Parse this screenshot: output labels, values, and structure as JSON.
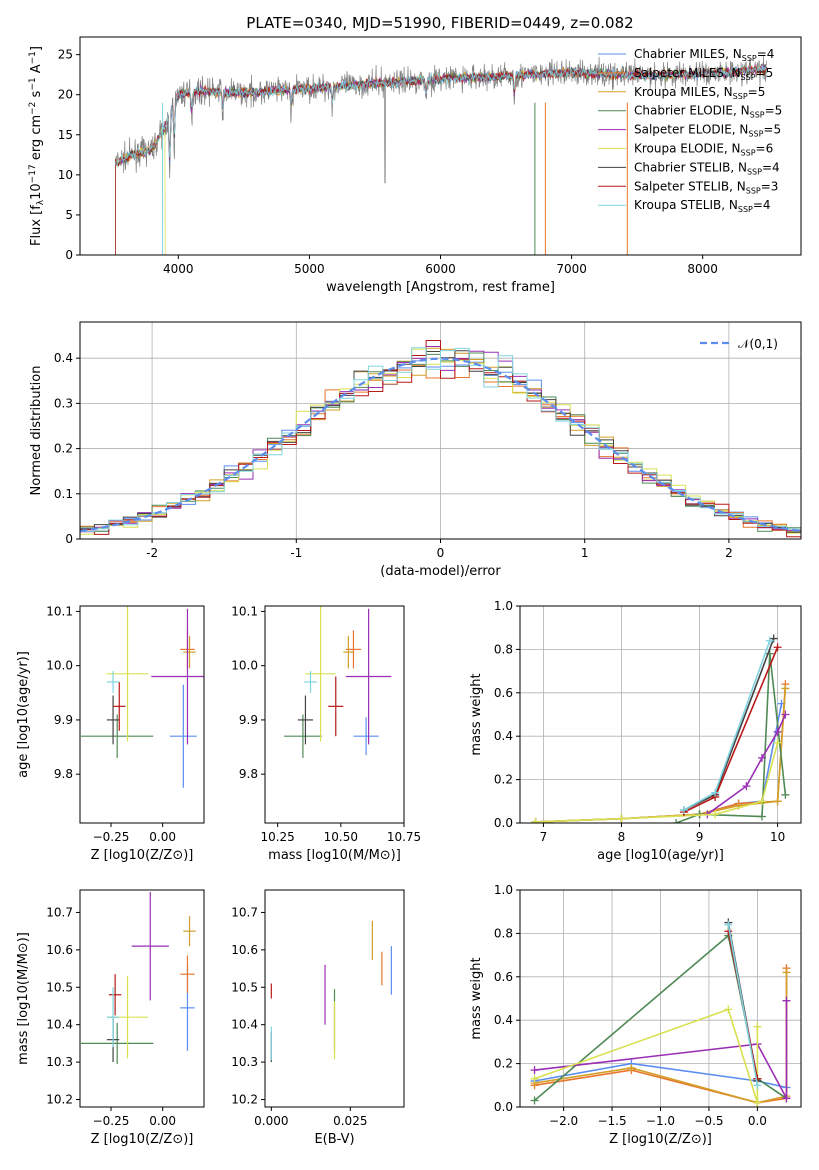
{
  "title": "PLATE=0340, MJD=51990, FIBERID=0449, z=0.082",
  "colors": {
    "Chabrier MILES": "#5b8def",
    "Salpeter MILES": "#e8762d",
    "Kroupa MILES": "#d2a028",
    "Chabrier ELODIE": "#4f8a55",
    "Salpeter ELODIE": "#9a2fb5",
    "Kroupa ELODIE": "#d9e050",
    "Chabrier STELIB": "#444444",
    "Salpeter STELIB": "#b81818",
    "Kroupa STELIB": "#7fd3df"
  },
  "chart_data": [
    {
      "id": "spectrum",
      "type": "line",
      "title": "PLATE=0340, MJD=51990, FIBERID=0449, z=0.082",
      "xlabel": "wavelength [Angstrom, rest frame]",
      "ylabel": "Flux [f_λ 10^-17 erg cm^-2 s^-1 A^-1]",
      "xlim": [
        3250,
        8750
      ],
      "ylim": [
        0,
        27.2
      ],
      "xticks": [
        4000,
        5000,
        6000,
        7000,
        8000
      ],
      "yticks": [
        0,
        5,
        10,
        15,
        20,
        25
      ],
      "legend_position": "right",
      "legend": [
        {
          "model": "Chabrier MILES",
          "nssp": "4"
        },
        {
          "model": "Salpeter MILES",
          "nssp": "5"
        },
        {
          "model": "Kroupa MILES",
          "nssp": "5"
        },
        {
          "model": "Chabrier ELODIE",
          "nssp": "5"
        },
        {
          "model": "Salpeter ELODIE",
          "nssp": "5"
        },
        {
          "model": "Kroupa ELODIE",
          "nssp": "6"
        },
        {
          "model": "Chabrier STELIB",
          "nssp": "4"
        },
        {
          "model": "Salpeter STELIB",
          "nssp": "3"
        },
        {
          "model": "Kroupa STELIB",
          "nssp": "4"
        }
      ],
      "continuum": [
        [
          3520,
          11.5
        ],
        [
          3650,
          12.5
        ],
        [
          3800,
          13.2
        ],
        [
          3900,
          16
        ],
        [
          3990,
          20
        ],
        [
          4200,
          20.5
        ],
        [
          4500,
          20.2
        ],
        [
          5000,
          20.8
        ],
        [
          5500,
          21.4
        ],
        [
          6000,
          22
        ],
        [
          6500,
          22.3
        ],
        [
          7000,
          22.8
        ],
        [
          7500,
          22.4
        ],
        [
          8000,
          22.6
        ],
        [
          8500,
          23.2
        ]
      ]
    },
    {
      "id": "residuals",
      "type": "area",
      "xlabel": "(data-model)/error",
      "ylabel": "Normed distribution",
      "xlim": [
        -2.5,
        2.5
      ],
      "ylim": [
        0,
        0.48
      ],
      "xticks": [
        -2,
        -1,
        0,
        1,
        2
      ],
      "yticks": [
        0.0,
        0.1,
        0.2,
        0.3,
        0.4
      ],
      "grid": true,
      "legend_position": "top-right",
      "legend_label": "𝒩(0,1)",
      "bin_width": 0.1
    },
    {
      "id": "age-vs-Z",
      "type": "scatter",
      "xlabel": "Z [log10(Z/Z⊙)]",
      "ylabel": "age [log10(age/yr)]",
      "xlim": [
        -0.4,
        0.2
      ],
      "ylim": [
        9.71,
        10.11
      ],
      "xticks": [
        -0.25,
        0.0
      ],
      "yticks": [
        9.8,
        9.9,
        10.0,
        10.1
      ],
      "points": [
        {
          "model": "Chabrier MILES",
          "x": 0.1,
          "y": 9.87,
          "xerr": 0.13,
          "yerr": 0.19
        },
        {
          "model": "Salpeter MILES",
          "x": 0.12,
          "y": 10.03,
          "xerr": 0.07,
          "yerr": 0.07
        },
        {
          "model": "Kroupa MILES",
          "x": 0.13,
          "y": 10.025,
          "xerr": 0.06,
          "yerr": 0.06
        },
        {
          "model": "Chabrier ELODIE",
          "x": -0.22,
          "y": 9.87,
          "xerr": 0.35,
          "yerr": 0.08
        },
        {
          "model": "Salpeter ELODIE",
          "x": 0.12,
          "y": 9.98,
          "xerr": 0.35,
          "yerr": 0.25
        },
        {
          "model": "Kroupa ELODIE",
          "x": -0.17,
          "y": 9.985,
          "xerr": 0.2,
          "yerr": 0.25
        },
        {
          "model": "Chabrier STELIB",
          "x": -0.24,
          "y": 9.9,
          "xerr": 0.06,
          "yerr": 0.09
        },
        {
          "model": "Salpeter STELIB",
          "x": -0.21,
          "y": 9.925,
          "xerr": 0.06,
          "yerr": 0.09
        },
        {
          "model": "Kroupa STELIB",
          "x": -0.24,
          "y": 9.97,
          "xerr": 0.06,
          "yerr": 0.04
        }
      ]
    },
    {
      "id": "age-vs-mass",
      "type": "scatter",
      "xlabel": "mass [log10(M/M⊙)]",
      "xlim": [
        10.2,
        10.75
      ],
      "ylim": [
        9.71,
        10.11
      ],
      "xticks": [
        10.25,
        10.5,
        10.75
      ],
      "yticks": [
        9.8,
        9.9,
        10.0,
        10.1
      ],
      "points": [
        {
          "model": "Chabrier MILES",
          "x": 10.6,
          "y": 9.87,
          "xerr": 0.1,
          "yerr": 0.07
        },
        {
          "model": "Salpeter MILES",
          "x": 10.55,
          "y": 10.03,
          "xerr": 0.06,
          "yerr": 0.07
        },
        {
          "model": "Kroupa MILES",
          "x": 10.53,
          "y": 10.025,
          "xerr": 0.04,
          "yerr": 0.06
        },
        {
          "model": "Chabrier ELODIE",
          "x": 10.35,
          "y": 9.87,
          "xerr": 0.15,
          "yerr": 0.08
        },
        {
          "model": "Salpeter ELODIE",
          "x": 10.61,
          "y": 9.98,
          "xerr": 0.18,
          "yerr": 0.25
        },
        {
          "model": "Kroupa ELODIE",
          "x": 10.42,
          "y": 9.985,
          "xerr": 0.12,
          "yerr": 0.25
        },
        {
          "model": "Chabrier STELIB",
          "x": 10.36,
          "y": 9.9,
          "xerr": 0.06,
          "yerr": 0.09
        },
        {
          "model": "Salpeter STELIB",
          "x": 10.48,
          "y": 9.925,
          "xerr": 0.06,
          "yerr": 0.11
        },
        {
          "model": "Kroupa STELIB",
          "x": 10.38,
          "y": 9.97,
          "xerr": 0.05,
          "yerr": 0.04
        }
      ]
    },
    {
      "id": "weight-vs-age",
      "type": "line",
      "xlabel": "age [log10(age/yr)]",
      "ylabel": "mass weight",
      "xlim": [
        6.7,
        10.3
      ],
      "ylim": [
        0,
        1
      ],
      "xticks": [
        7,
        8,
        9,
        10
      ],
      "yticks": [
        0.0,
        0.2,
        0.4,
        0.6,
        0.8,
        1.0
      ],
      "grid": true,
      "series": [
        {
          "model": "Chabrier MILES",
          "x": [
            6.9,
            8.0,
            9.0,
            9.5,
            9.8,
            10.05
          ],
          "y": [
            0.005,
            0.02,
            0.04,
            0.09,
            0.1,
            0.55
          ]
        },
        {
          "model": "Salpeter MILES",
          "x": [
            6.9,
            8.0,
            9.0,
            9.5,
            10.0,
            10.1
          ],
          "y": [
            0.005,
            0.02,
            0.04,
            0.09,
            0.1,
            0.64
          ]
        },
        {
          "model": "Kroupa MILES",
          "x": [
            6.9,
            8.0,
            9.0,
            9.5,
            10.0,
            10.1
          ],
          "y": [
            0.005,
            0.02,
            0.04,
            0.08,
            0.1,
            0.62
          ]
        },
        {
          "model": "Chabrier ELODIE",
          "x": [
            8.7,
            9.0,
            9.8,
            9.9,
            10.1
          ],
          "y": [
            0.0,
            0.04,
            0.03,
            0.78,
            0.13
          ]
        },
        {
          "model": "Salpeter ELODIE",
          "x": [
            9.1,
            9.6,
            9.8,
            10.0,
            10.1
          ],
          "y": [
            0.04,
            0.17,
            0.3,
            0.42,
            0.5
          ]
        },
        {
          "model": "Kroupa ELODIE",
          "x": [
            6.9,
            8.0,
            9.2,
            9.8,
            10.0
          ],
          "y": [
            0.005,
            0.02,
            0.04,
            0.1,
            0.37
          ]
        },
        {
          "model": "Chabrier STELIB",
          "x": [
            8.8,
            9.2,
            9.95
          ],
          "y": [
            0.06,
            0.13,
            0.85
          ]
        },
        {
          "model": "Salpeter STELIB",
          "x": [
            8.8,
            9.2,
            10.0
          ],
          "y": [
            0.05,
            0.12,
            0.81
          ]
        },
        {
          "model": "Kroupa STELIB",
          "x": [
            8.8,
            9.2,
            9.9
          ],
          "y": [
            0.06,
            0.14,
            0.84
          ]
        }
      ]
    },
    {
      "id": "mass-vs-Z",
      "type": "scatter",
      "xlabel": "Z [log10(Z/Z⊙)]",
      "ylabel": "mass [log10(M/M⊙)]",
      "xlim": [
        -0.4,
        0.2
      ],
      "ylim": [
        10.18,
        10.76
      ],
      "xticks": [
        -0.25,
        0.0
      ],
      "yticks": [
        10.2,
        10.3,
        10.4,
        10.5,
        10.6,
        10.7
      ],
      "points": [
        {
          "model": "Chabrier MILES",
          "x": 0.12,
          "y": 10.445,
          "xerr": 0.07,
          "yerr": 0.23
        },
        {
          "model": "Salpeter MILES",
          "x": 0.12,
          "y": 10.535,
          "xerr": 0.07,
          "yerr": 0.1
        },
        {
          "model": "Kroupa MILES",
          "x": 0.13,
          "y": 10.65,
          "xerr": 0.06,
          "yerr": 0.08
        },
        {
          "model": "Chabrier ELODIE",
          "x": -0.22,
          "y": 10.35,
          "xerr": 0.35,
          "yerr": 0.11
        },
        {
          "model": "Salpeter ELODIE",
          "x": -0.06,
          "y": 10.61,
          "xerr": 0.18,
          "yerr": 0.29
        },
        {
          "model": "Kroupa ELODIE",
          "x": -0.17,
          "y": 10.42,
          "xerr": 0.2,
          "yerr": 0.22
        },
        {
          "model": "Chabrier STELIB",
          "x": -0.24,
          "y": 10.36,
          "xerr": 0.06,
          "yerr": 0.12
        },
        {
          "model": "Salpeter STELIB",
          "x": -0.23,
          "y": 10.48,
          "xerr": 0.06,
          "yerr": 0.11
        },
        {
          "model": "Kroupa STELIB",
          "x": -0.24,
          "y": 10.42,
          "xerr": 0.06,
          "yerr": 0.16
        }
      ]
    },
    {
      "id": "mass-vs-ebv",
      "type": "scatter",
      "xlabel": "E(B-V)",
      "xlim": [
        -0.002,
        0.042
      ],
      "ylim": [
        10.18,
        10.76
      ],
      "xticks": [
        0.0,
        0.025
      ],
      "yticks": [
        10.2,
        10.3,
        10.4,
        10.5,
        10.6,
        10.7
      ],
      "points": [
        {
          "model": "Chabrier MILES",
          "x": 0.038,
          "y": 10.545,
          "yerr": 0.13
        },
        {
          "model": "Salpeter MILES",
          "x": 0.035,
          "y": 10.55,
          "yerr": 0.09
        },
        {
          "model": "Kroupa MILES",
          "x": 0.032,
          "y": 10.625,
          "yerr": 0.105
        },
        {
          "model": "Chabrier ELODIE",
          "x": 0.02,
          "y": 10.41,
          "yerr": 0.17
        },
        {
          "model": "Salpeter ELODIE",
          "x": 0.017,
          "y": 10.48,
          "yerr": 0.16
        },
        {
          "model": "Kroupa ELODIE",
          "x": 0.02,
          "y": 10.385,
          "yerr": 0.155
        },
        {
          "model": "Chabrier STELIB",
          "x": 0.0,
          "y": 10.34,
          "yerr": 0.08
        },
        {
          "model": "Salpeter STELIB",
          "x": 0.0,
          "y": 10.49,
          "yerr": 0.04
        },
        {
          "model": "Kroupa STELIB",
          "x": 0.0,
          "y": 10.35,
          "yerr": 0.09
        }
      ]
    },
    {
      "id": "weight-vs-Z",
      "type": "line",
      "xlabel": "Z [log10(Z/Z⊙)]",
      "ylabel": "mass weight",
      "xlim": [
        -2.45,
        0.45
      ],
      "ylim": [
        0,
        1
      ],
      "xticks": [
        -2.0,
        -1.5,
        -1.0,
        -0.5,
        0.0
      ],
      "yticks": [
        0.0,
        0.2,
        0.4,
        0.6,
        0.8,
        1.0
      ],
      "grid": true,
      "series": [
        {
          "model": "Chabrier MILES",
          "x": [
            -2.3,
            -1.3,
            0.0,
            0.3
          ],
          "y": [
            0.12,
            0.2,
            0.12,
            0.09
          ]
        },
        {
          "model": "Salpeter MILES",
          "x": [
            -2.3,
            -1.3,
            0.0,
            0.3,
            0.3
          ],
          "y": [
            0.1,
            0.17,
            0.02,
            0.04,
            0.64
          ]
        },
        {
          "model": "Kroupa MILES",
          "x": [
            -2.3,
            -1.3,
            0.0,
            0.3,
            0.3
          ],
          "y": [
            0.11,
            0.18,
            0.02,
            0.05,
            0.62
          ]
        },
        {
          "model": "Chabrier ELODIE",
          "x": [
            -2.3,
            -0.3,
            0.0,
            0.3
          ],
          "y": [
            0.03,
            0.79,
            0.13,
            0.04
          ]
        },
        {
          "model": "Salpeter ELODIE",
          "x": [
            -2.3,
            0.0,
            0.3,
            0.3
          ],
          "y": [
            0.17,
            0.29,
            0.04,
            0.49
          ]
        },
        {
          "model": "Kroupa ELODIE",
          "x": [
            -2.3,
            -0.3,
            0.0,
            0.0
          ],
          "y": [
            0.13,
            0.45,
            0.02,
            0.37
          ]
        },
        {
          "model": "Chabrier STELIB",
          "x": [
            -0.3,
            0.0
          ],
          "y": [
            0.85,
            0.12
          ]
        },
        {
          "model": "Salpeter STELIB",
          "x": [
            -0.3,
            0.0
          ],
          "y": [
            0.81,
            0.13
          ]
        },
        {
          "model": "Kroupa STELIB",
          "x": [
            -0.3,
            0.0
          ],
          "y": [
            0.84,
            0.1
          ]
        }
      ]
    }
  ]
}
